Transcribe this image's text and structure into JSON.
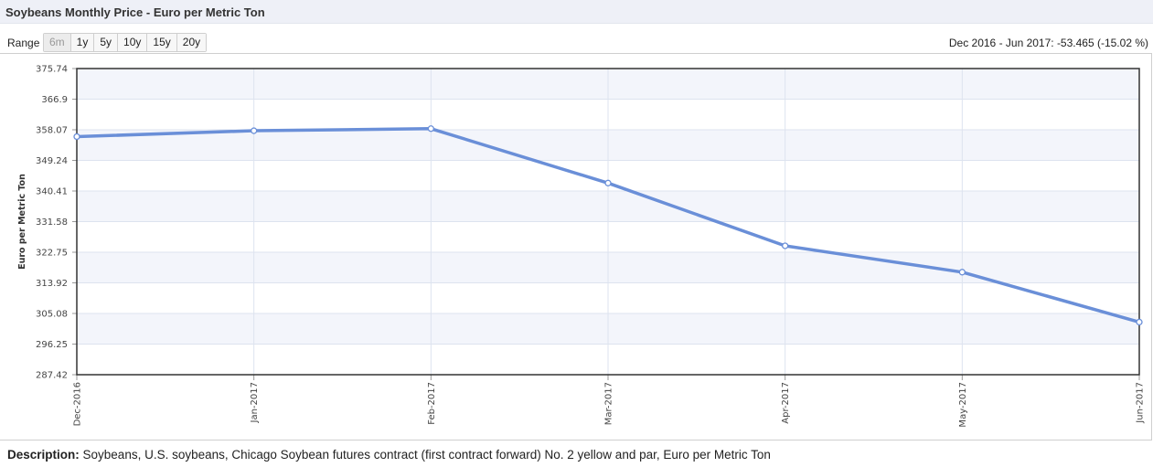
{
  "header": {
    "title": "Soybeans Monthly Price - Euro per Metric Ton"
  },
  "range": {
    "label": "Range",
    "buttons": [
      "6m",
      "1y",
      "5y",
      "10y",
      "15y",
      "20y"
    ],
    "active": "6m"
  },
  "change_text": "Dec 2016 - Jun 2017: -53.465 (-15.02 %)",
  "description": {
    "label": "Description:",
    "text": "Soybeans, U.S. soybeans, Chicago Soybean futures contract (first contract forward) No. 2 yellow and par, Euro per Metric Ton"
  },
  "colors": {
    "line": "#6a8fd8",
    "band": "#f3f5fb",
    "grid": "#dde3ef",
    "border": "#333333"
  },
  "chart_data": {
    "type": "line",
    "title": "Soybeans Monthly Price - Euro per Metric Ton",
    "xlabel": "",
    "ylabel": "Euro per Metric Ton",
    "categories": [
      "Dec-2016",
      "Jan-2017",
      "Feb-2017",
      "Mar-2017",
      "Apr-2017",
      "May-2017",
      "Jun-2017"
    ],
    "series": [
      {
        "values": [
          356.1,
          357.8,
          358.4,
          342.7,
          324.6,
          317.0,
          302.6
        ]
      }
    ],
    "yticks": [
      "375.74",
      "366.9",
      "358.07",
      "349.24",
      "340.41",
      "331.58",
      "322.75",
      "313.92",
      "305.08",
      "296.25",
      "287.42"
    ],
    "ylim": [
      287.42,
      375.74
    ],
    "grid": true,
    "legend": "none"
  }
}
